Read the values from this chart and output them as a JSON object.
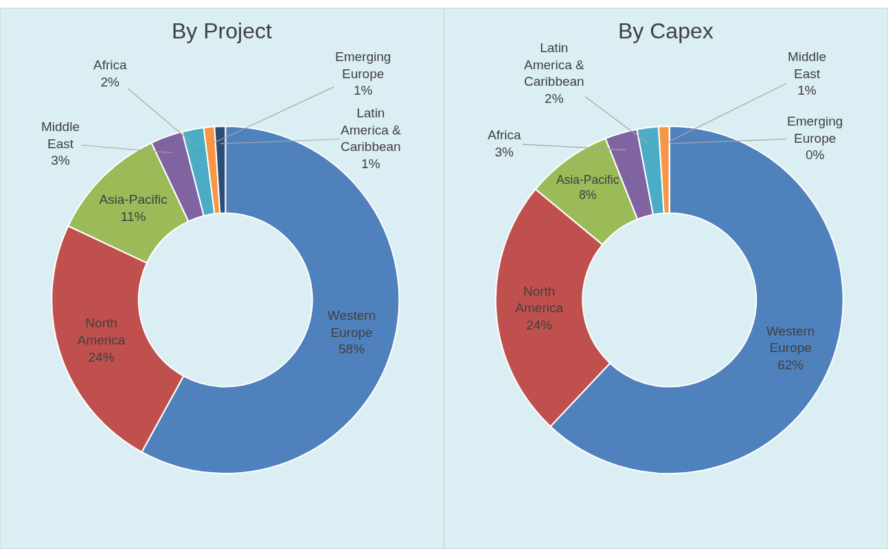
{
  "chart_data": [
    {
      "type": "donut",
      "title": "By Project",
      "categories": [
        "Western Europe",
        "North America",
        "Asia-Pacific",
        "Middle East",
        "Africa",
        "Emerging Europe",
        "Latin America & Caribbean"
      ],
      "values": [
        58,
        24,
        11,
        3,
        2,
        1,
        1
      ],
      "value_labels": [
        "58%",
        "24%",
        "11%",
        "3%",
        "2%",
        "1%",
        "1%"
      ],
      "colors": [
        "#4f81bd",
        "#c0504d",
        "#9bbb59",
        "#8064a2",
        "#4bacc6",
        "#f79646",
        "#2c4d75"
      ]
    },
    {
      "type": "donut",
      "title": "By Capex",
      "categories": [
        "Western Europe",
        "North America",
        "Asia-Pacific",
        "Africa",
        "Latin America & Caribbean",
        "Middle East",
        "Emerging Europe"
      ],
      "values": [
        62,
        24,
        8,
        3,
        2,
        1,
        0
      ],
      "value_labels": [
        "62%",
        "24%",
        "8%",
        "3%",
        "2%",
        "1%",
        "0%"
      ],
      "colors": [
        "#4f81bd",
        "#c0504d",
        "#9bbb59",
        "#8064a2",
        "#4bacc6",
        "#f79646",
        "#a5b9d6"
      ]
    }
  ]
}
